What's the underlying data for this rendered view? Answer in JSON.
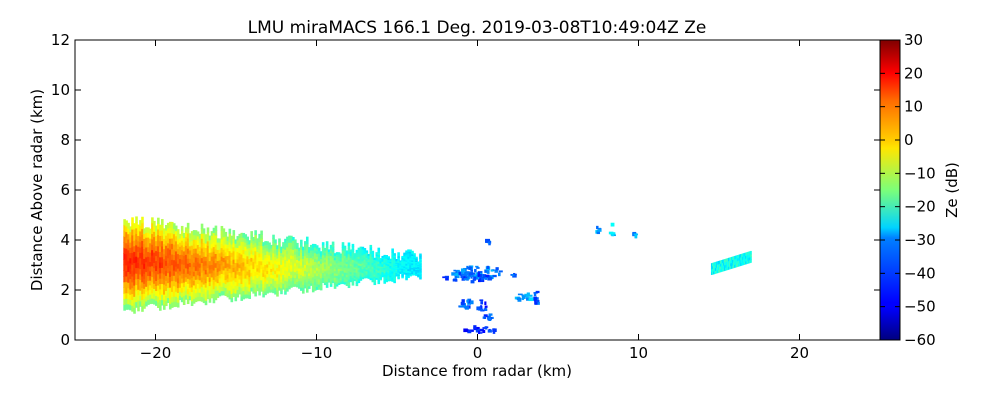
{
  "chart_data": {
    "type": "heatmap",
    "title": "LMU miraMACS 166.1 Deg. 2019-03-08T10:49:04Z  Ze",
    "xlabel": "Distance from radar (km)",
    "ylabel": "Distance Above radar  (km)",
    "xlim": [
      -25,
      25
    ],
    "ylim": [
      0,
      12
    ],
    "x_ticks": [
      -20,
      -10,
      0,
      10,
      20
    ],
    "x_tick_labels": [
      "−20",
      "−10",
      "0",
      "10",
      "20"
    ],
    "y_ticks": [
      0,
      2,
      4,
      6,
      8,
      10,
      12
    ],
    "y_tick_labels": [
      "0",
      "2",
      "4",
      "6",
      "8",
      "10",
      "12"
    ],
    "colorbar": {
      "label": "Ze (dB)",
      "range": [
        -60,
        30
      ],
      "colormap": "jet",
      "ticks": [
        30,
        20,
        10,
        0,
        -10,
        -20,
        -30,
        -40,
        -50,
        -60
      ],
      "tick_labels": [
        "30",
        "20",
        "10",
        "0",
        "−10",
        "−20",
        "−30",
        "−40",
        "−50",
        "−60"
      ]
    },
    "regions": [
      {
        "kind": "plume",
        "x_start": -22,
        "x_end": -3.5,
        "base_start": 1.2,
        "base_end": 2.6,
        "top_start": 4.8,
        "top_end": 3.3,
        "ze_core": 16,
        "ze_edge": -28
      },
      {
        "kind": "blob",
        "x": 0,
        "y": 2.7,
        "w": 3.2,
        "h": 0.5,
        "ze": -37
      },
      {
        "kind": "blob",
        "x": -0.6,
        "y": 2.5,
        "w": 3.0,
        "h": 0.35,
        "ze": -42
      },
      {
        "kind": "blob",
        "x": -0.7,
        "y": 1.45,
        "w": 0.9,
        "h": 0.45,
        "ze": -40
      },
      {
        "kind": "blob",
        "x": 0.3,
        "y": 1.35,
        "w": 0.6,
        "h": 0.5,
        "ze": -44
      },
      {
        "kind": "blob",
        "x": 2.9,
        "y": 1.7,
        "w": 1.2,
        "h": 0.3,
        "ze": -33
      },
      {
        "kind": "blob",
        "x": 3.7,
        "y": 1.65,
        "w": 0.4,
        "h": 0.55,
        "ze": -42
      },
      {
        "kind": "blob",
        "x": 0.2,
        "y": 0.4,
        "w": 2.2,
        "h": 0.25,
        "ze": -46
      },
      {
        "kind": "blob",
        "x": 0.6,
        "y": 0.9,
        "w": 0.8,
        "h": 0.3,
        "ze": -42
      },
      {
        "kind": "blob",
        "x": 2.2,
        "y": 2.6,
        "w": 0.3,
        "h": 0.15,
        "ze": -40
      },
      {
        "kind": "blob",
        "x": 0.7,
        "y": 3.9,
        "w": 0.3,
        "h": 0.2,
        "ze": -38
      },
      {
        "kind": "blob",
        "x": 7.5,
        "y": 4.4,
        "w": 0.25,
        "h": 0.3,
        "ze": -35
      },
      {
        "kind": "blob",
        "x": 8.4,
        "y": 4.4,
        "w": 0.3,
        "h": 0.5,
        "ze": -30
      },
      {
        "kind": "blob",
        "x": 9.8,
        "y": 4.2,
        "w": 0.2,
        "h": 0.2,
        "ze": -35
      },
      {
        "kind": "band",
        "x_start": 14.5,
        "x_end": 17.0,
        "y_start": 2.85,
        "y_end": 3.35,
        "thickness": 0.45,
        "ze": -25
      }
    ]
  }
}
